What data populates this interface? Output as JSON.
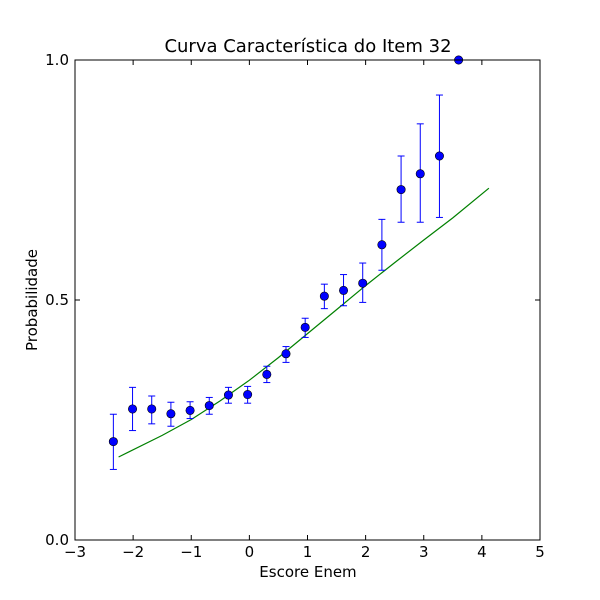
{
  "chart_data": {
    "type": "scatter",
    "title": "Curva Característica do Item 32",
    "xlabel": "Escore Enem",
    "ylabel": "Probabilidade",
    "xlim": [
      -3,
      5
    ],
    "ylim": [
      0.0,
      1.0
    ],
    "x_ticks": [
      -3,
      -2,
      -1,
      0,
      1,
      2,
      3,
      4,
      5
    ],
    "x_tick_labels": [
      "−3",
      "−2",
      "−1",
      "0",
      "1",
      "2",
      "3",
      "4",
      "5"
    ],
    "y_ticks": [
      0.0,
      0.5,
      1.0
    ],
    "y_tick_labels": [
      "0.0",
      "0.5",
      "1.0"
    ],
    "grid": false,
    "series": [
      {
        "kind": "points_with_error_bars",
        "color": "#0000ff",
        "x": [
          -2.34,
          -2.01,
          -1.68,
          -1.35,
          -1.02,
          -0.69,
          -0.36,
          -0.03,
          0.3,
          0.63,
          0.96,
          1.29,
          1.62,
          1.95,
          2.28,
          2.61,
          2.94,
          3.27,
          3.6
        ],
        "y": [
          0.205,
          0.273,
          0.273,
          0.263,
          0.27,
          0.28,
          0.302,
          0.303,
          0.345,
          0.388,
          0.443,
          0.508,
          0.52,
          0.535,
          0.615,
          0.73,
          0.763,
          0.8,
          1.0
        ],
        "err_low": [
          0.147,
          0.228,
          0.242,
          0.237,
          0.253,
          0.262,
          0.285,
          0.285,
          0.328,
          0.37,
          0.422,
          0.482,
          0.488,
          0.495,
          0.562,
          0.662,
          0.662,
          0.672,
          null
        ],
        "err_high": [
          0.262,
          0.318,
          0.3,
          0.287,
          0.288,
          0.297,
          0.318,
          0.32,
          0.362,
          0.403,
          0.462,
          0.533,
          0.553,
          0.577,
          0.668,
          0.8,
          0.867,
          0.927,
          null
        ]
      },
      {
        "kind": "fitted_curve",
        "color": "#008000",
        "x": [
          -2.25,
          -1.5,
          -1.0,
          -0.5,
          0.0,
          0.5,
          1.0,
          1.5,
          2.0,
          2.5,
          3.0,
          3.5,
          4.12
        ],
        "y": [
          0.173,
          0.218,
          0.251,
          0.29,
          0.333,
          0.38,
          0.43,
          0.48,
          0.53,
          0.578,
          0.625,
          0.671,
          0.733
        ]
      }
    ]
  }
}
